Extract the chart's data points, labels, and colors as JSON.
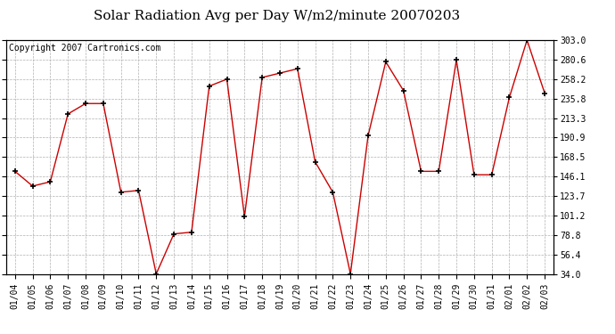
{
  "title": "Solar Radiation Avg per Day W/m2/minute 20070203",
  "copyright": "Copyright 2007 Cartronics.com",
  "dates": [
    "01/04",
    "01/05",
    "01/06",
    "01/07",
    "01/08",
    "01/09",
    "01/10",
    "01/11",
    "01/12",
    "01/13",
    "01/14",
    "01/15",
    "01/16",
    "01/17",
    "01/18",
    "01/19",
    "01/20",
    "01/21",
    "01/22",
    "01/23",
    "01/24",
    "01/25",
    "01/26",
    "01/27",
    "01/28",
    "01/29",
    "01/30",
    "01/31",
    "02/01",
    "02/02",
    "02/03"
  ],
  "values": [
    152,
    135,
    140,
    218,
    230,
    230,
    128,
    130,
    34,
    80,
    82,
    250,
    258,
    100,
    260,
    265,
    270,
    163,
    128,
    34,
    193,
    278,
    245,
    152,
    152,
    280,
    148,
    148,
    237,
    303,
    242
  ],
  "line_color": "#cc0000",
  "marker": "+",
  "marker_color": "#000000",
  "bg_color": "#ffffff",
  "plot_bg_color": "#ffffff",
  "grid_color": "#b0b0b0",
  "ylim": [
    34.0,
    303.0
  ],
  "yticks": [
    34.0,
    56.4,
    78.8,
    101.2,
    123.7,
    146.1,
    168.5,
    190.9,
    213.3,
    235.8,
    258.2,
    280.6,
    303.0
  ],
  "title_fontsize": 11,
  "tick_fontsize": 7,
  "copyright_fontsize": 7
}
